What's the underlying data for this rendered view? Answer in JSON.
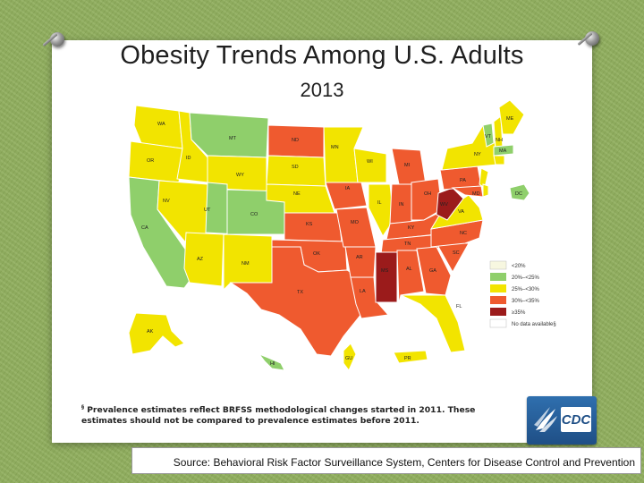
{
  "slide": {
    "title": "Obesity Trends Among U.S. Adults",
    "year": "2013",
    "footnote_marker": "§",
    "footnote": "Prevalence estimates reflect BRFSS methodological changes started in 2011. These estimates should not be compared to prevalence estimates before 2011.",
    "source": "Source: Behavioral Risk Factor Surveillance System, Centers for Disease Control and Prevention",
    "logo_text": "CDC"
  },
  "legend": [
    {
      "label": "<20%",
      "color": "#f7f7e0"
    },
    {
      "label": "20%–<25%",
      "color": "#8fcf6b"
    },
    {
      "label": "25%–<30%",
      "color": "#f2e400"
    },
    {
      "label": "30%–<35%",
      "color": "#ef5a2f"
    },
    {
      "label": "≥35%",
      "color": "#9b1b1b"
    },
    {
      "label": "No data available§",
      "color": "#ffffff"
    }
  ],
  "colors": {
    "c20_25": "#8fcf6b",
    "c25_30": "#f2e400",
    "c30_35": "#ef5a2f",
    "c35": "#9b1b1b"
  },
  "states": {
    "WA": "WA",
    "OR": "OR",
    "CA": "CA",
    "ID": "ID",
    "NV": "NV",
    "MT": "MT",
    "WY": "WY",
    "UT": "UT",
    "CO": "CO",
    "AZ": "AZ",
    "NM": "NM",
    "ND": "ND",
    "SD": "SD",
    "NE": "NE",
    "KS": "KS",
    "OK": "OK",
    "TX": "TX",
    "MN": "MN",
    "IA": "IA",
    "MO": "MO",
    "AR": "AR",
    "LA": "LA",
    "WI": "WI",
    "IL": "IL",
    "MI": "MI",
    "IN": "IN",
    "OH": "OH",
    "KY": "KY",
    "TN": "TN",
    "MS": "MS",
    "AL": "AL",
    "GA": "GA",
    "FL": "FL",
    "SC": "SC",
    "NC": "NC",
    "VA": "VA",
    "WV": "WV",
    "PA": "PA",
    "NY": "NY",
    "MD": "MD",
    "DC": "DC",
    "ME": "ME",
    "VT": "VT",
    "NH": "NH",
    "MA": "MA",
    "AK": "AK",
    "HI": "HI",
    "GU": "GU",
    "PR": "PR"
  }
}
